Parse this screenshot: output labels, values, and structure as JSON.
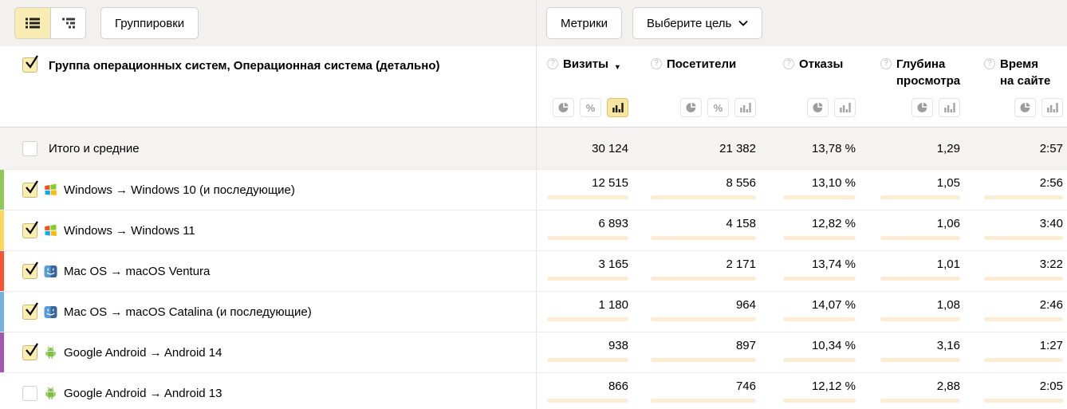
{
  "toolbar": {
    "groupings": "Группировки",
    "metrics": "Метрики",
    "goal_selector": "Выберите цель",
    "view_list_selected": true
  },
  "header": {
    "checked": true,
    "title": "Группа операционных систем, Операционная система (детально)",
    "columns": [
      {
        "label": "Визиты",
        "label2": "",
        "sorted": "desc",
        "toggles": [
          "pie",
          "percent",
          "bar"
        ],
        "active_toggle": "bar"
      },
      {
        "label": "Посетители",
        "label2": "",
        "sorted": "",
        "toggles": [
          "pie",
          "percent",
          "bar"
        ],
        "active_toggle": ""
      },
      {
        "label": "Отказы",
        "label2": "",
        "sorted": "",
        "toggles": [
          "pie",
          "bar"
        ],
        "active_toggle": ""
      },
      {
        "label": "Глубина",
        "label2": "просмотра",
        "sorted": "",
        "toggles": [
          "pie",
          "bar"
        ],
        "active_toggle": ""
      },
      {
        "label": "Время",
        "label2": "на сайте",
        "sorted": "",
        "toggles": [
          "pie",
          "bar"
        ],
        "active_toggle": ""
      }
    ]
  },
  "totals": {
    "label": "Итого и средние",
    "checked": false,
    "values": [
      "30 124",
      "21 382",
      "13,78 %",
      "1,29",
      "2:57"
    ]
  },
  "rows": [
    {
      "label": "Windows → Windows 10 (и последующие)",
      "os": "windows",
      "stripe": "#8fc95b",
      "checked": true,
      "values": [
        "12 515",
        "8 556",
        "13,10 %",
        "1,05",
        "2:56"
      ],
      "bars": [
        100,
        100,
        13,
        7,
        28
      ]
    },
    {
      "label": "Windows → Windows 11",
      "os": "windows",
      "stripe": "#fed55f",
      "checked": true,
      "values": [
        "6 893",
        "4 158",
        "12,82 %",
        "1,06",
        "3:40"
      ],
      "bars": [
        55,
        49,
        13,
        7,
        35
      ]
    },
    {
      "label": "Mac OS → macOS Ventura",
      "os": "macos",
      "stripe": "#fb5335",
      "checked": true,
      "values": [
        "3 165",
        "2 171",
        "13,74 %",
        "1,01",
        "3:22"
      ],
      "bars": [
        25,
        25,
        14,
        6,
        32
      ]
    },
    {
      "label": "Mac OS → macOS Catalina (и последующие)",
      "os": "macos",
      "stripe": "#73b4e3",
      "checked": true,
      "values": [
        "1 180",
        "964",
        "14,07 %",
        "1,08",
        "2:46"
      ],
      "bars": [
        9,
        11,
        14,
        7,
        26
      ]
    },
    {
      "label": "Google Android → Android 14",
      "os": "android",
      "stripe": "#a457ae",
      "checked": true,
      "values": [
        "938",
        "897",
        "10,34 %",
        "3,16",
        "1:27"
      ],
      "bars": [
        8,
        10,
        10,
        21,
        14
      ]
    },
    {
      "label": "Google Android → Android 13",
      "os": "android",
      "stripe": "",
      "checked": false,
      "values": [
        "866",
        "746",
        "12,12 %",
        "2,88",
        "2:05"
      ],
      "bars": [
        7,
        9,
        12,
        19,
        20
      ]
    }
  ],
  "colors": {
    "bar_fill": "#f5c077",
    "bar_track": "#fcecd4",
    "selected_yellow": "#f8ecb2",
    "totals_bg": "#f4f3f1"
  }
}
